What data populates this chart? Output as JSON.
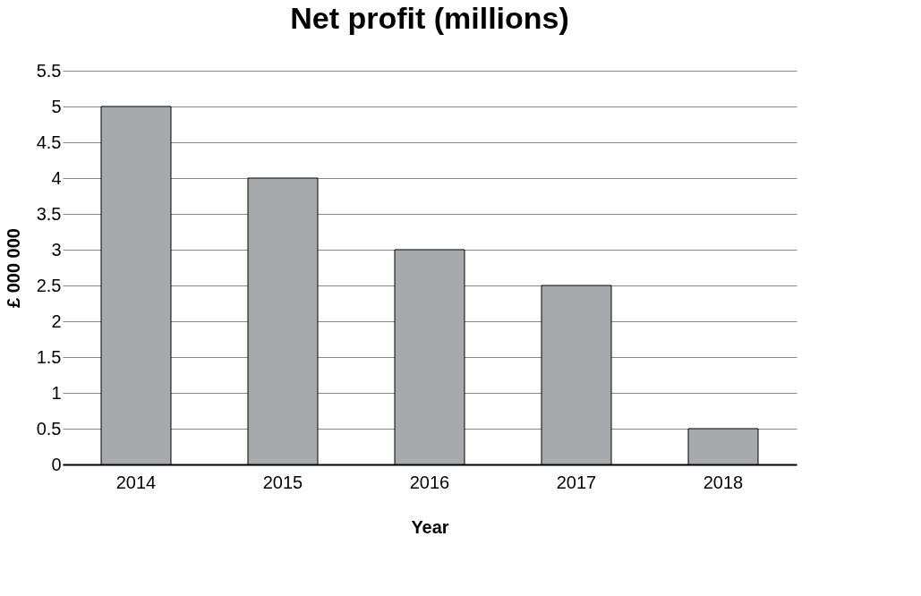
{
  "chart_data": {
    "type": "bar",
    "title": "Net profit (millions)",
    "xlabel": "Year",
    "ylabel": "£ 000 000",
    "categories": [
      "2014",
      "2015",
      "2016",
      "2017",
      "2018"
    ],
    "values": [
      5,
      4,
      3,
      2.5,
      0.5
    ],
    "color": "#a7a9ac",
    "ylim": [
      0,
      5.5
    ],
    "yticks": [
      0,
      0.5,
      1,
      1.5,
      2,
      2.5,
      3,
      3.5,
      4,
      4.5,
      5,
      5.5
    ],
    "grid": "y"
  }
}
